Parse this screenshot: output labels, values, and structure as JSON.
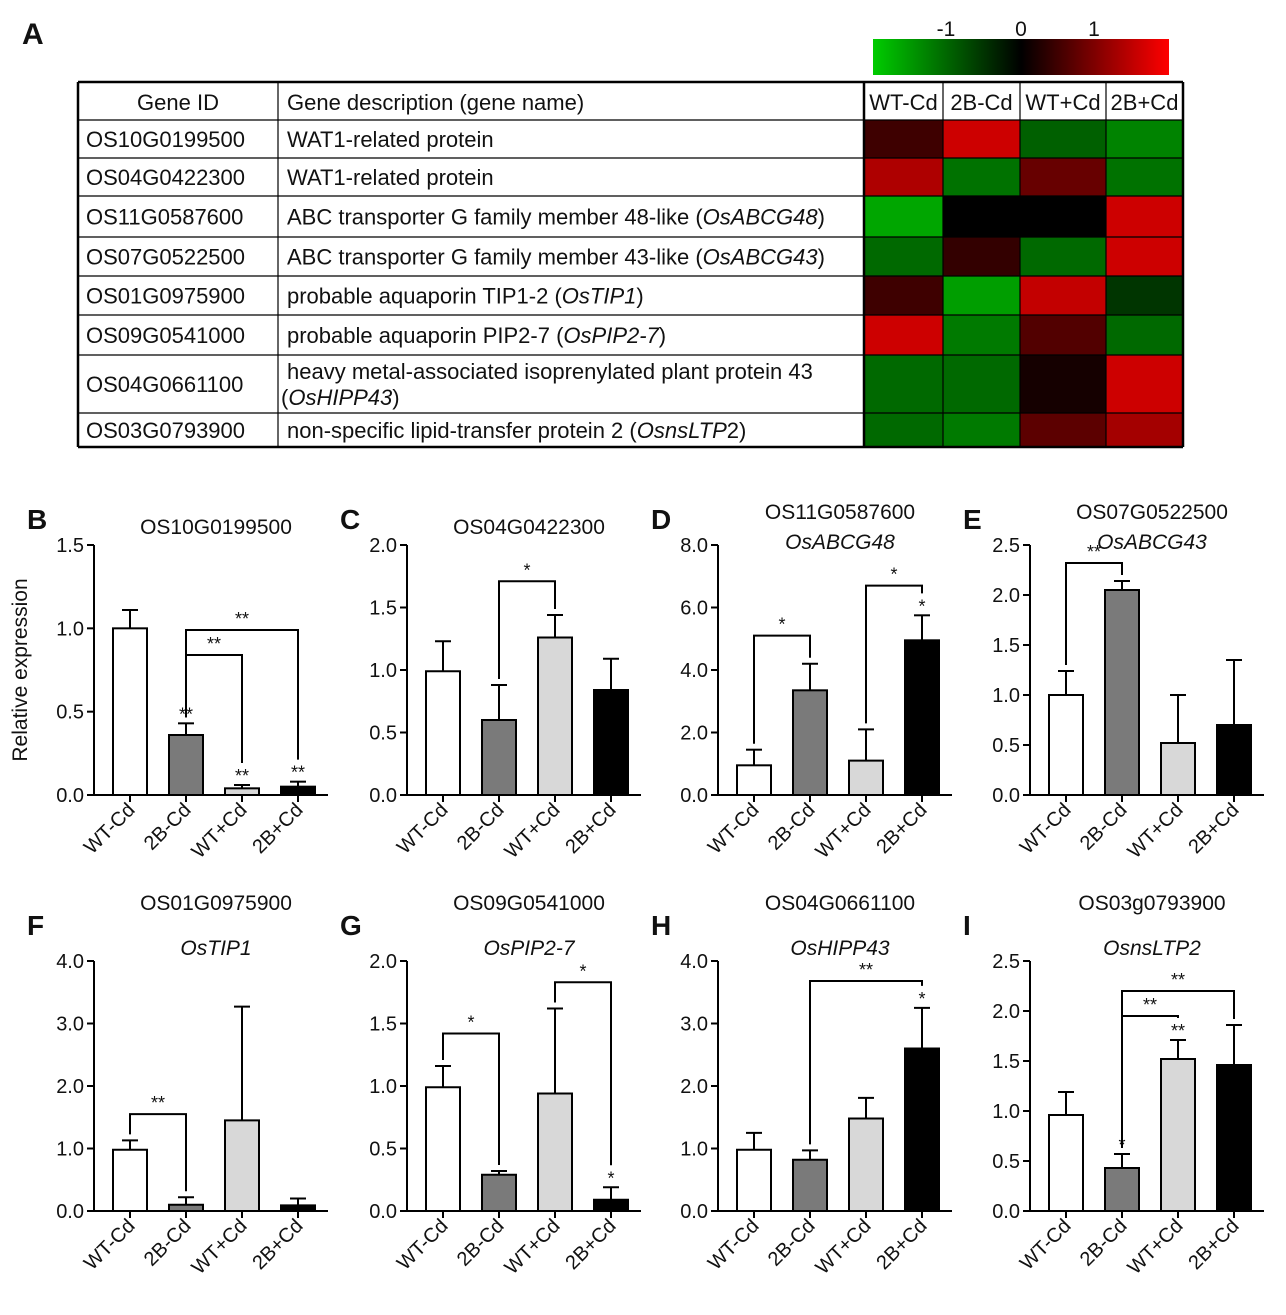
{
  "panel_a": {
    "label": "A",
    "colorscale": {
      "ticks": [
        "-1",
        "0",
        "1"
      ],
      "colors": [
        "#00cc00",
        "#000000",
        "#ff0000"
      ]
    },
    "columns": [
      "Gene ID",
      "Gene description (gene name)"
    ],
    "conditions": [
      "WT-Cd",
      "2B-Cd",
      "WT+Cd",
      "2B+Cd"
    ],
    "rows": [
      {
        "id": "OS10G0199500",
        "desc": [
          {
            "t": "WAT1-related protein",
            "i": false
          }
        ],
        "values": [
          0.3,
          1.0,
          -0.55,
          -0.75
        ]
      },
      {
        "id": "OS04G0422300",
        "desc": [
          {
            "t": "WAT1-related protein",
            "i": false
          }
        ],
        "values": [
          0.85,
          -0.65,
          0.5,
          -0.65
        ]
      },
      {
        "id": "OS11G0587600",
        "desc": [
          {
            "t": "ABC transporter G family member 48-like (",
            "i": false
          },
          {
            "t": "OsABCG48",
            "i": true
          },
          {
            "t": ")",
            "i": false
          }
        ],
        "values": [
          -0.95,
          0.0,
          0.0,
          1.0
        ]
      },
      {
        "id": "OS07G0522500",
        "desc": [
          {
            "t": "ABC transporter G family member 43-like (",
            "i": false
          },
          {
            "t": "OsABCG43",
            "i": true
          },
          {
            "t": ")",
            "i": false
          }
        ],
        "values": [
          -0.6,
          0.25,
          -0.6,
          1.0
        ]
      },
      {
        "id": "OS01G0975900",
        "desc": [
          {
            "t": "probable aquaporin TIP1-2 (",
            "i": false
          },
          {
            "t": "OsTIP1",
            "i": true
          },
          {
            "t": ")",
            "i": false
          }
        ],
        "values": [
          0.3,
          -0.9,
          0.95,
          -0.3
        ]
      },
      {
        "id": "OS09G0541000",
        "desc": [
          {
            "t": "probable aquaporin PIP2-7 (",
            "i": false
          },
          {
            "t": "OsPIP2-7",
            "i": true
          },
          {
            "t": ")",
            "i": false
          }
        ],
        "values": [
          1.0,
          -0.7,
          0.4,
          -0.6
        ]
      },
      {
        "id": "OS04G0661100",
        "desc": [
          {
            "t": "heavy metal-associated isoprenylated plant protein 43",
            "i": false
          }
        ],
        "desc2": [
          {
            "t": "(",
            "i": false
          },
          {
            "t": "OsHIPP43",
            "i": true
          },
          {
            "t": ")",
            "i": false
          }
        ],
        "values": [
          -0.6,
          -0.6,
          0.1,
          1.0
        ]
      },
      {
        "id": "OS03G0793900",
        "desc": [
          {
            "t": "non-specific lipid-transfer protein 2 (",
            "i": false
          },
          {
            "t": "OsnsLTP",
            "i": true
          },
          {
            "t": "2)",
            "i": false
          }
        ],
        "values": [
          -0.6,
          -0.7,
          0.45,
          0.8
        ]
      }
    ]
  },
  "ylabel": "Relative expression",
  "chart_data": [
    {
      "panel": "B",
      "type": "bar",
      "title": "OS10G0199500",
      "subtitle": "",
      "categories": [
        "WT-Cd",
        "2B-Cd",
        "WT+Cd",
        "2B+Cd"
      ],
      "values": [
        1.0,
        0.36,
        0.04,
        0.05
      ],
      "errors": [
        0.11,
        0.07,
        0.02,
        0.03
      ],
      "ylim": [
        0,
        1.5
      ],
      "yticks": [
        "0.0",
        "0.5",
        "1.0",
        "1.5"
      ],
      "ylabel": "Relative expression",
      "marks": [
        {
          "bar": 1,
          "t": "**"
        },
        {
          "bar": 2,
          "t": "**"
        },
        {
          "bar": 3,
          "t": "**"
        }
      ],
      "brackets": [
        {
          "from": 1,
          "to": 2,
          "y": 0.84,
          "t": "**"
        },
        {
          "from": 1,
          "to": 3,
          "y": 0.99,
          "t": "**"
        }
      ]
    },
    {
      "panel": "C",
      "type": "bar",
      "title": "OS04G0422300",
      "subtitle": "",
      "categories": [
        "WT-Cd",
        "2B-Cd",
        "WT+Cd",
        "2B+Cd"
      ],
      "values": [
        0.99,
        0.6,
        1.26,
        0.84
      ],
      "errors": [
        0.24,
        0.28,
        0.18,
        0.25
      ],
      "ylim": [
        0,
        2.0
      ],
      "yticks": [
        "0.0",
        "0.5",
        "1.0",
        "1.5",
        "2.0"
      ],
      "marks": [],
      "brackets": [
        {
          "from": 1,
          "to": 2,
          "y": 1.71,
          "t": "*"
        }
      ]
    },
    {
      "panel": "D",
      "type": "bar",
      "title": "OS11G0587600",
      "subtitle": "OsABCG48",
      "categories": [
        "WT-Cd",
        "2B-Cd",
        "WT+Cd",
        "2B+Cd"
      ],
      "values": [
        0.95,
        3.35,
        1.1,
        4.95
      ],
      "errors": [
        0.5,
        0.85,
        1.0,
        0.8
      ],
      "ylim": [
        0,
        8.0
      ],
      "yticks": [
        "0.0",
        "2.0",
        "4.0",
        "6.0",
        "8.0"
      ],
      "marks": [
        {
          "bar": 3,
          "t": "*"
        }
      ],
      "brackets": [
        {
          "from": 0,
          "to": 1,
          "y": 5.1,
          "t": "*"
        },
        {
          "from": 2,
          "to": 3,
          "y": 6.7,
          "t": "*"
        }
      ]
    },
    {
      "panel": "E",
      "type": "bar",
      "title": "OS07G0522500",
      "subtitle": "OsABCG43",
      "categories": [
        "WT-Cd",
        "2B-Cd",
        "WT+Cd",
        "2B+Cd"
      ],
      "values": [
        1.0,
        2.05,
        0.52,
        0.7
      ],
      "errors": [
        0.24,
        0.09,
        0.48,
        0.65
      ],
      "ylim": [
        0,
        2.5
      ],
      "yticks": [
        "0.0",
        "0.5",
        "1.0",
        "1.5",
        "2.0",
        "2.5"
      ],
      "marks": [],
      "brackets": [
        {
          "from": 0,
          "to": 1,
          "y": 2.32,
          "t": "**"
        }
      ]
    },
    {
      "panel": "F",
      "type": "bar",
      "title": "OS01G0975900",
      "subtitle": "OsTIP1",
      "categories": [
        "WT-Cd",
        "2B-Cd",
        "WT+Cd",
        "2B+Cd"
      ],
      "values": [
        0.98,
        0.1,
        1.45,
        0.09
      ],
      "errors": [
        0.15,
        0.12,
        1.82,
        0.11
      ],
      "ylim": [
        0,
        4.0
      ],
      "yticks": [
        "0.0",
        "1.0",
        "2.0",
        "3.0",
        "4.0"
      ],
      "marks": [],
      "brackets": [
        {
          "from": 0,
          "to": 1,
          "y": 1.55,
          "t": "**"
        }
      ]
    },
    {
      "panel": "G",
      "type": "bar",
      "title": "OS09G0541000",
      "subtitle": "OsPIP2-7",
      "categories": [
        "WT-Cd",
        "2B-Cd",
        "WT+Cd",
        "2B+Cd"
      ],
      "values": [
        0.99,
        0.29,
        0.94,
        0.09
      ],
      "errors": [
        0.17,
        0.03,
        0.68,
        0.1
      ],
      "ylim": [
        0,
        2.0
      ],
      "yticks": [
        "0.0",
        "0.5",
        "1.0",
        "1.5",
        "2.0"
      ],
      "marks": [
        {
          "bar": 3,
          "t": "*"
        }
      ],
      "brackets": [
        {
          "from": 0,
          "to": 1,
          "y": 1.42,
          "t": "*"
        },
        {
          "from": 2,
          "to": 3,
          "y": 1.83,
          "t": "*"
        }
      ]
    },
    {
      "panel": "H",
      "type": "bar",
      "title": "OS04G0661100",
      "subtitle": "OsHIPP43",
      "categories": [
        "WT-Cd",
        "2B-Cd",
        "WT+Cd",
        "2B+Cd"
      ],
      "values": [
        0.98,
        0.82,
        1.48,
        2.6
      ],
      "errors": [
        0.27,
        0.15,
        0.33,
        0.65
      ],
      "ylim": [
        0,
        4.0
      ],
      "yticks": [
        "0.0",
        "1.0",
        "2.0",
        "3.0",
        "4.0"
      ],
      "marks": [
        {
          "bar": 3,
          "t": "*"
        }
      ],
      "brackets": [
        {
          "from": 1,
          "to": 3,
          "y": 3.68,
          "t": "**"
        }
      ]
    },
    {
      "panel": "I",
      "type": "bar",
      "title": "OS03g0793900",
      "subtitle": "OsnsLTP2",
      "categories": [
        "WT-Cd",
        "2B-Cd",
        "WT+Cd",
        "2B+Cd"
      ],
      "values": [
        0.96,
        0.43,
        1.52,
        1.46
      ],
      "errors": [
        0.23,
        0.14,
        0.19,
        0.4
      ],
      "ylim": [
        0,
        2.5
      ],
      "yticks": [
        "0.0",
        "0.5",
        "1.0",
        "1.5",
        "2.0",
        "2.5"
      ],
      "marks": [
        {
          "bar": 1,
          "t": "*"
        },
        {
          "bar": 2,
          "t": "**"
        }
      ],
      "brackets": [
        {
          "from": 1,
          "to": 2,
          "y": 1.95,
          "t": "**"
        },
        {
          "from": 1,
          "to": 3,
          "y": 2.2,
          "t": "**"
        }
      ]
    }
  ],
  "bar_colors": [
    "#ffffff",
    "#7a7a7a",
    "#d8d8d8",
    "#000000"
  ]
}
